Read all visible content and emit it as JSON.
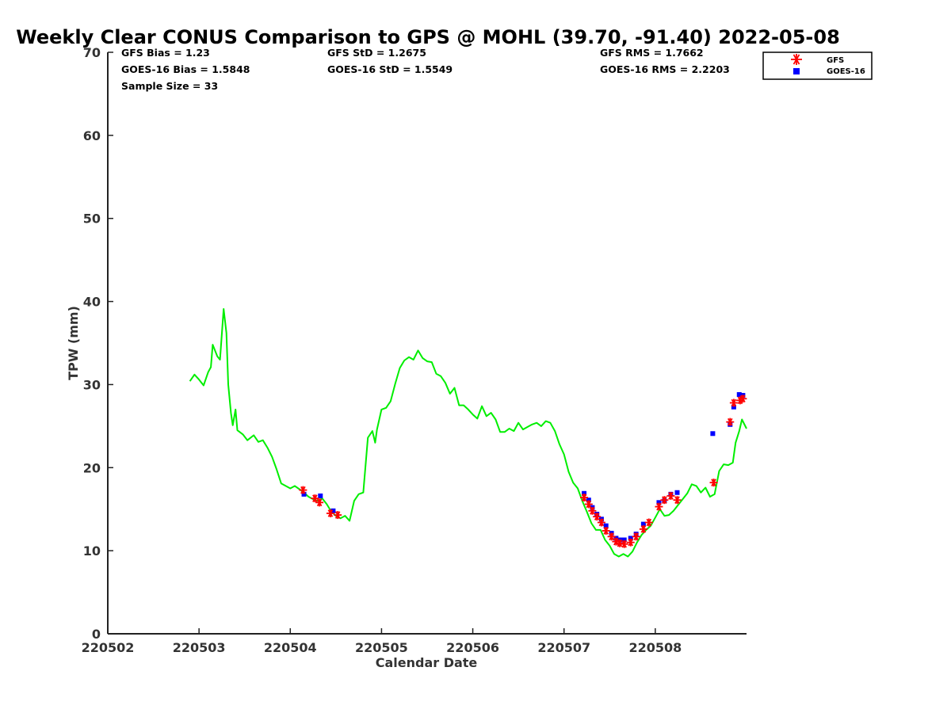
{
  "chart_data": {
    "type": "line",
    "title": "Weekly Clear CONUS Comparison to GPS @ MOHL (39.70, -91.40) 2022-05-08",
    "xlabel": "Calendar Date",
    "ylabel": "TPW (mm)",
    "xlim": [
      220502,
      220509
    ],
    "ylim": [
      0,
      70
    ],
    "x_ticks": [
      220502,
      220503,
      220504,
      220505,
      220506,
      220507,
      220508
    ],
    "x_tick_labels": [
      "220502",
      "220503",
      "220504",
      "220505",
      "220506",
      "220507",
      "220508"
    ],
    "y_ticks": [
      0,
      10,
      20,
      30,
      40,
      50,
      60,
      70
    ],
    "y_tick_labels": [
      "0",
      "10",
      "20",
      "30",
      "40",
      "50",
      "60",
      "70"
    ],
    "stats": {
      "gfs_bias": "GFS Bias = 1.23",
      "goes_bias": "GOES-16 Bias = 1.5848",
      "sample_size": "Sample Size = 33",
      "gfs_std": "GFS StD = 1.2675",
      "goes_std": "GOES-16 StD = 1.5549",
      "gfs_rms": "GFS RMS = 1.7662",
      "goes_rms": "GOES-16 RMS = 2.2203"
    },
    "legend": {
      "position": "top-right",
      "entries": [
        {
          "label": "GFS",
          "marker": "asterisk",
          "color": "#ff0000"
        },
        {
          "label": "GOES-16",
          "marker": "square",
          "color": "#0000ff"
        }
      ]
    },
    "series": [
      {
        "name": "GPS",
        "style": "line",
        "color": "#00ee00",
        "points": [
          [
            220502.9,
            30.4
          ],
          [
            220502.95,
            31.2
          ],
          [
            220503.0,
            30.6
          ],
          [
            220503.05,
            29.9
          ],
          [
            220503.1,
            31.5
          ],
          [
            220503.13,
            32.1
          ],
          [
            220503.15,
            34.8
          ],
          [
            220503.2,
            33.4
          ],
          [
            220503.23,
            33.0
          ],
          [
            220503.27,
            39.1
          ],
          [
            220503.3,
            36.2
          ],
          [
            220503.32,
            30.0
          ],
          [
            220503.35,
            26.6
          ],
          [
            220503.37,
            25.1
          ],
          [
            220503.4,
            27.0
          ],
          [
            220503.42,
            24.5
          ],
          [
            220503.48,
            24.0
          ],
          [
            220503.53,
            23.3
          ],
          [
            220503.6,
            23.9
          ],
          [
            220503.65,
            23.1
          ],
          [
            220503.7,
            23.3
          ],
          [
            220503.75,
            22.4
          ],
          [
            220503.8,
            21.3
          ],
          [
            220503.85,
            19.8
          ],
          [
            220503.9,
            18.1
          ],
          [
            220504.0,
            17.5
          ],
          [
            220504.05,
            17.8
          ],
          [
            220504.1,
            17.4
          ],
          [
            220504.15,
            17.0
          ],
          [
            220504.2,
            16.5
          ],
          [
            220504.25,
            16.2
          ],
          [
            220504.3,
            16.0
          ],
          [
            220504.35,
            16.3
          ],
          [
            220504.4,
            15.6
          ],
          [
            220504.45,
            14.7
          ],
          [
            220504.5,
            14.2
          ],
          [
            220504.55,
            13.9
          ],
          [
            220504.6,
            14.2
          ],
          [
            220504.65,
            13.6
          ],
          [
            220504.7,
            16.0
          ],
          [
            220504.75,
            16.8
          ],
          [
            220504.8,
            17.0
          ],
          [
            220504.85,
            23.6
          ],
          [
            220504.9,
            24.4
          ],
          [
            220504.93,
            23.0
          ],
          [
            220504.95,
            24.6
          ],
          [
            220505.0,
            27.0
          ],
          [
            220505.05,
            27.2
          ],
          [
            220505.1,
            28.0
          ],
          [
            220505.15,
            30.1
          ],
          [
            220505.2,
            32.0
          ],
          [
            220505.25,
            32.9
          ],
          [
            220505.3,
            33.3
          ],
          [
            220505.35,
            33.0
          ],
          [
            220505.4,
            34.1
          ],
          [
            220505.45,
            33.2
          ],
          [
            220505.5,
            32.8
          ],
          [
            220505.55,
            32.7
          ],
          [
            220505.6,
            31.3
          ],
          [
            220505.65,
            31.0
          ],
          [
            220505.7,
            30.2
          ],
          [
            220505.75,
            28.9
          ],
          [
            220505.8,
            29.6
          ],
          [
            220505.85,
            27.5
          ],
          [
            220505.9,
            27.5
          ],
          [
            220505.95,
            27.0
          ],
          [
            220506.0,
            26.4
          ],
          [
            220506.05,
            25.9
          ],
          [
            220506.1,
            27.4
          ],
          [
            220506.15,
            26.2
          ],
          [
            220506.2,
            26.6
          ],
          [
            220506.25,
            25.8
          ],
          [
            220506.3,
            24.3
          ],
          [
            220506.35,
            24.3
          ],
          [
            220506.4,
            24.7
          ],
          [
            220506.45,
            24.4
          ],
          [
            220506.5,
            25.4
          ],
          [
            220506.55,
            24.6
          ],
          [
            220506.6,
            24.9
          ],
          [
            220506.65,
            25.2
          ],
          [
            220506.7,
            25.4
          ],
          [
            220506.75,
            25.0
          ],
          [
            220506.8,
            25.6
          ],
          [
            220506.85,
            25.4
          ],
          [
            220506.9,
            24.4
          ],
          [
            220506.95,
            22.8
          ],
          [
            220507.0,
            21.6
          ],
          [
            220507.05,
            19.5
          ],
          [
            220507.1,
            18.2
          ],
          [
            220507.15,
            17.5
          ],
          [
            220507.2,
            16.0
          ],
          [
            220507.25,
            14.7
          ],
          [
            220507.3,
            13.3
          ],
          [
            220507.35,
            12.5
          ],
          [
            220507.4,
            12.5
          ],
          [
            220507.45,
            11.3
          ],
          [
            220507.5,
            10.6
          ],
          [
            220507.55,
            9.6
          ],
          [
            220507.6,
            9.3
          ],
          [
            220507.65,
            9.6
          ],
          [
            220507.7,
            9.3
          ],
          [
            220507.75,
            9.9
          ],
          [
            220507.8,
            11.0
          ],
          [
            220507.85,
            11.9
          ],
          [
            220507.9,
            12.5
          ],
          [
            220507.95,
            13.0
          ],
          [
            220508.0,
            14.0
          ],
          [
            220508.05,
            15.0
          ],
          [
            220508.1,
            14.2
          ],
          [
            220508.15,
            14.3
          ],
          [
            220508.2,
            14.8
          ],
          [
            220508.25,
            15.5
          ],
          [
            220508.3,
            16.2
          ],
          [
            220508.35,
            16.9
          ],
          [
            220508.4,
            18.0
          ],
          [
            220508.45,
            17.8
          ],
          [
            220508.5,
            17.0
          ],
          [
            220508.55,
            17.6
          ],
          [
            220508.6,
            16.5
          ],
          [
            220508.65,
            16.8
          ],
          [
            220508.7,
            19.6
          ],
          [
            220508.75,
            20.4
          ],
          [
            220508.8,
            20.3
          ],
          [
            220508.85,
            20.6
          ],
          [
            220508.88,
            23.0
          ],
          [
            220508.92,
            24.4
          ],
          [
            220508.95,
            25.8
          ],
          [
            220509.0,
            24.7
          ]
        ]
      },
      {
        "name": "GFS",
        "style": "marker",
        "marker": "asterisk",
        "color": "#ff0000",
        "points": [
          [
            220504.14,
            17.3
          ],
          [
            220504.27,
            16.3
          ],
          [
            220504.32,
            15.8
          ],
          [
            220504.44,
            14.5
          ],
          [
            220504.52,
            14.3
          ],
          [
            220507.22,
            16.4
          ],
          [
            220507.27,
            15.6
          ],
          [
            220507.31,
            14.8
          ],
          [
            220507.36,
            14.1
          ],
          [
            220507.41,
            13.4
          ],
          [
            220507.46,
            12.4
          ],
          [
            220507.52,
            11.7
          ],
          [
            220507.57,
            11.1
          ],
          [
            220507.61,
            10.9
          ],
          [
            220507.66,
            10.8
          ],
          [
            220507.73,
            11.0
          ],
          [
            220507.79,
            11.7
          ],
          [
            220507.87,
            12.6
          ],
          [
            220507.93,
            13.4
          ],
          [
            220508.04,
            15.3
          ],
          [
            220508.1,
            16.1
          ],
          [
            220508.17,
            16.6
          ],
          [
            220508.24,
            16.1
          ],
          [
            220508.64,
            18.2
          ],
          [
            220508.82,
            25.5
          ],
          [
            220508.86,
            27.8
          ],
          [
            220508.93,
            28.1
          ],
          [
            220508.96,
            28.3
          ]
        ]
      },
      {
        "name": "GOES-16",
        "style": "marker",
        "marker": "square",
        "color": "#0000ff",
        "points": [
          [
            220504.15,
            16.8
          ],
          [
            220504.33,
            16.6
          ],
          [
            220504.47,
            14.8
          ],
          [
            220507.22,
            16.9
          ],
          [
            220507.27,
            16.1
          ],
          [
            220507.31,
            15.2
          ],
          [
            220507.36,
            14.4
          ],
          [
            220507.41,
            13.8
          ],
          [
            220507.46,
            13.0
          ],
          [
            220507.52,
            12.1
          ],
          [
            220507.57,
            11.5
          ],
          [
            220507.61,
            11.3
          ],
          [
            220507.66,
            11.3
          ],
          [
            220507.73,
            11.5
          ],
          [
            220507.79,
            12.0
          ],
          [
            220507.87,
            13.2
          ],
          [
            220508.04,
            15.8
          ],
          [
            220508.1,
            16.0
          ],
          [
            220508.17,
            16.8
          ],
          [
            220508.24,
            17.0
          ],
          [
            220508.63,
            24.1
          ],
          [
            220508.82,
            25.2
          ],
          [
            220508.86,
            27.3
          ],
          [
            220508.92,
            28.8
          ],
          [
            220508.96,
            28.7
          ]
        ]
      }
    ]
  }
}
